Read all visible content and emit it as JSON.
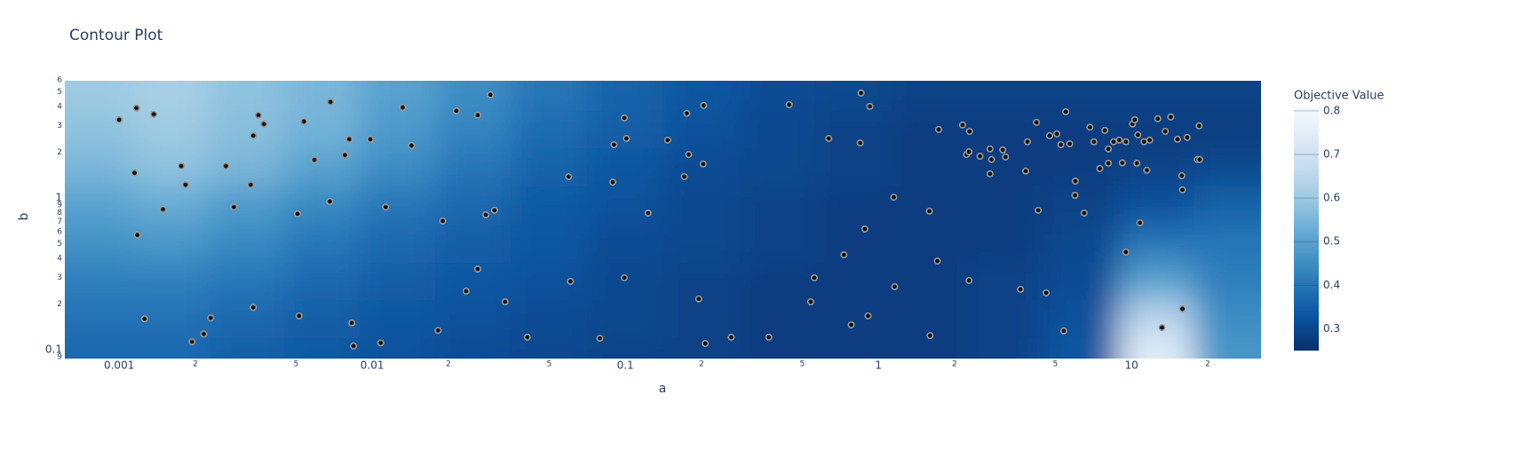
{
  "chart_data": {
    "type": "contour",
    "title": "Contour Plot",
    "xlabel": "a",
    "ylabel": "b",
    "colorbar_title": "Objective Value",
    "xscale": "log",
    "yscale": "log",
    "xlim": [
      0.00061,
      32.5
    ],
    "ylim": [
      0.0875,
      5.9
    ],
    "zlim": [
      0.25,
      0.81
    ],
    "colorscale": [
      "#08306b",
      "#08519c",
      "#2171b5",
      "#4292c6",
      "#6baed6",
      "#9ecae1",
      "#c6dbef",
      "#deebf7",
      "#f7fbff"
    ],
    "xticks": [
      0.001,
      {
        "value": 0.002,
        "label": "2"
      },
      {
        "value": 0.005,
        "label": "5"
      },
      0.01,
      {
        "value": 0.02,
        "label": "2"
      },
      {
        "value": 0.05,
        "label": "5"
      },
      0.1,
      {
        "value": 0.2,
        "label": "2"
      },
      {
        "value": 0.5,
        "label": "5"
      },
      1,
      {
        "value": 2,
        "label": "2"
      },
      {
        "value": 5,
        "label": "5"
      },
      10,
      {
        "value": 20,
        "label": "2"
      }
    ],
    "yticks": [
      {
        "value": 0.09,
        "label": "9"
      },
      0.1,
      {
        "value": 0.2,
        "label": "2"
      },
      {
        "value": 0.3,
        "label": "3"
      },
      {
        "value": 0.4,
        "label": "4"
      },
      {
        "value": 0.5,
        "label": "5"
      },
      {
        "value": 0.6,
        "label": "6"
      },
      {
        "value": 0.7,
        "label": "7"
      },
      {
        "value": 0.8,
        "label": "8"
      },
      {
        "value": 0.9,
        "label": "9"
      },
      1,
      {
        "value": 2,
        "label": "2"
      },
      {
        "value": 3,
        "label": "3"
      },
      {
        "value": 4,
        "label": "4"
      },
      {
        "value": 5,
        "label": "5"
      },
      {
        "value": 6,
        "label": "6"
      }
    ],
    "zticks": [
      0.3,
      0.4,
      0.5,
      0.6,
      0.7,
      0.8
    ],
    "x": [
      0.00079,
      0.0016,
      0.0032,
      0.0063,
      0.0126,
      0.025,
      0.05,
      0.1,
      0.2,
      0.4,
      0.79,
      1.6,
      3.2,
      6.3,
      12.6,
      25
    ],
    "y": [
      5.0,
      2.8,
      1.6,
      0.89,
      0.5,
      0.28,
      0.16,
      0.089
    ],
    "z": [
      [
        0.6,
        0.62,
        0.58,
        0.55,
        0.5,
        0.45,
        0.4,
        0.36,
        0.33,
        0.31,
        0.3,
        0.29,
        0.29,
        0.29,
        0.29,
        0.29
      ],
      [
        0.58,
        0.6,
        0.57,
        0.54,
        0.48,
        0.43,
        0.38,
        0.35,
        0.32,
        0.3,
        0.29,
        0.28,
        0.28,
        0.28,
        0.28,
        0.28
      ],
      [
        0.55,
        0.58,
        0.55,
        0.5,
        0.45,
        0.4,
        0.36,
        0.33,
        0.31,
        0.3,
        0.29,
        0.28,
        0.28,
        0.28,
        0.29,
        0.3
      ],
      [
        0.5,
        0.52,
        0.48,
        0.44,
        0.4,
        0.37,
        0.34,
        0.32,
        0.3,
        0.29,
        0.28,
        0.28,
        0.28,
        0.29,
        0.32,
        0.36
      ],
      [
        0.46,
        0.47,
        0.44,
        0.4,
        0.37,
        0.35,
        0.33,
        0.31,
        0.3,
        0.29,
        0.28,
        0.28,
        0.28,
        0.3,
        0.4,
        0.4
      ],
      [
        0.42,
        0.42,
        0.4,
        0.37,
        0.35,
        0.33,
        0.32,
        0.3,
        0.29,
        0.28,
        0.28,
        0.28,
        0.29,
        0.31,
        0.5,
        0.42
      ],
      [
        0.39,
        0.39,
        0.37,
        0.35,
        0.33,
        0.32,
        0.31,
        0.3,
        0.29,
        0.28,
        0.28,
        0.28,
        0.29,
        0.32,
        0.65,
        0.45
      ],
      [
        0.37,
        0.37,
        0.35,
        0.34,
        0.32,
        0.31,
        0.3,
        0.29,
        0.29,
        0.28,
        0.28,
        0.28,
        0.29,
        0.33,
        0.75,
        0.47
      ]
    ],
    "points": {
      "x": [
        0.001,
        0.00117,
        0.00137,
        0.00115,
        0.00176,
        0.00183,
        0.00264,
        0.00149,
        0.00118,
        0.00284,
        0.00355,
        0.00373,
        0.00339,
        0.00331,
        0.00537,
        0.00684,
        0.00591,
        0.00507,
        0.0068,
        0.00811,
        0.00983,
        0.0078,
        0.00339,
        0.0023,
        0.00216,
        0.00194,
        0.00126,
        0.00514,
        0.0083,
        0.00843,
        0.0108,
        0.0113,
        0.0132,
        0.0143,
        0.0215,
        0.0261,
        0.0293,
        0.019,
        0.0281,
        0.0304,
        0.0261,
        0.0235,
        0.0335,
        0.0182,
        0.041,
        0.0597,
        0.0607,
        0.0793,
        0.0892,
        0.0991,
        0.101,
        0.0902,
        0.0991,
        0.123,
        0.147,
        0.175,
        0.178,
        0.171,
        0.204,
        0.203,
        0.195,
        0.207,
        0.262,
        0.369,
        0.444,
        0.636,
        0.847,
        0.854,
        0.925,
        0.884,
        0.558,
        0.54,
        0.731,
        0.781,
        0.91,
        1.15,
        1.16,
        1.59,
        1.71,
        1.6,
        1.73,
        2.28,
        2.15,
        2.29,
        2.23,
        2.28,
        2.52,
        2.76,
        2.8,
        2.76,
        3.1,
        3.18,
        3.82,
        3.88,
        4.21,
        4.28,
        3.64,
        4.6,
        4.75,
        5.07,
        5.5,
        5.26,
        5.7,
        6.0,
        5.98,
        5.4,
        6.5,
        6.85,
        7.1,
        7.85,
        7.5,
        8.1,
        8.1,
        8.5,
        8.95,
        9.5,
        9.2,
        10.1,
        10.6,
        10.3,
        11.2,
        11.8,
        12.7,
        13.6,
        14.3,
        15.2,
        16.6,
        18.2,
        18.5,
        15.8,
        15.9,
        10.5,
        11.5,
        10.8,
        9.5,
        13.2,
        15.9,
        18.6
      ],
      "y": [
        3.27,
        3.9,
        3.55,
        1.46,
        1.62,
        1.22,
        1.62,
        0.84,
        0.57,
        0.87,
        3.5,
        3.06,
        2.57,
        1.22,
        3.18,
        4.28,
        1.78,
        0.785,
        0.947,
        2.43,
        2.43,
        1.91,
        0.19,
        0.162,
        0.127,
        0.113,
        0.16,
        0.167,
        0.15,
        0.106,
        0.111,
        0.87,
        3.94,
        2.21,
        3.74,
        3.5,
        4.77,
        0.705,
        0.774,
        0.828,
        0.34,
        0.243,
        0.207,
        0.134,
        0.121,
        1.38,
        0.282,
        0.119,
        1.27,
        3.36,
        2.46,
        2.24,
        0.298,
        0.795,
        2.4,
        3.6,
        1.93,
        1.38,
        4.06,
        1.67,
        0.216,
        0.11,
        0.121,
        0.121,
        4.11,
        2.46,
        2.3,
        4.9,
        4.0,
        0.624,
        0.298,
        0.207,
        0.422,
        0.146,
        0.167,
        1.01,
        0.26,
        0.817,
        0.384,
        0.124,
        2.82,
        0.286,
        3.02,
        2.74,
        1.93,
        2.01,
        1.88,
        2.1,
        1.79,
        1.44,
        2.07,
        1.86,
        1.5,
        2.34,
        3.14,
        0.828,
        0.25,
        0.237,
        2.57,
        2.64,
        3.69,
        2.24,
        2.27,
        1.29,
        1.04,
        0.133,
        0.795,
        2.92,
        2.34,
        2.78,
        1.56,
        1.69,
        2.1,
        2.34,
        2.4,
        2.34,
        1.7,
        3.06,
        2.6,
        3.27,
        2.34,
        2.4,
        3.32,
        2.74,
        3.41,
        2.43,
        2.5,
        1.79,
        2.98,
        1.4,
        1.13,
        1.69,
        1.52,
        0.686,
        0.44,
        0.14,
        0.186,
        1.79
      ]
    }
  }
}
